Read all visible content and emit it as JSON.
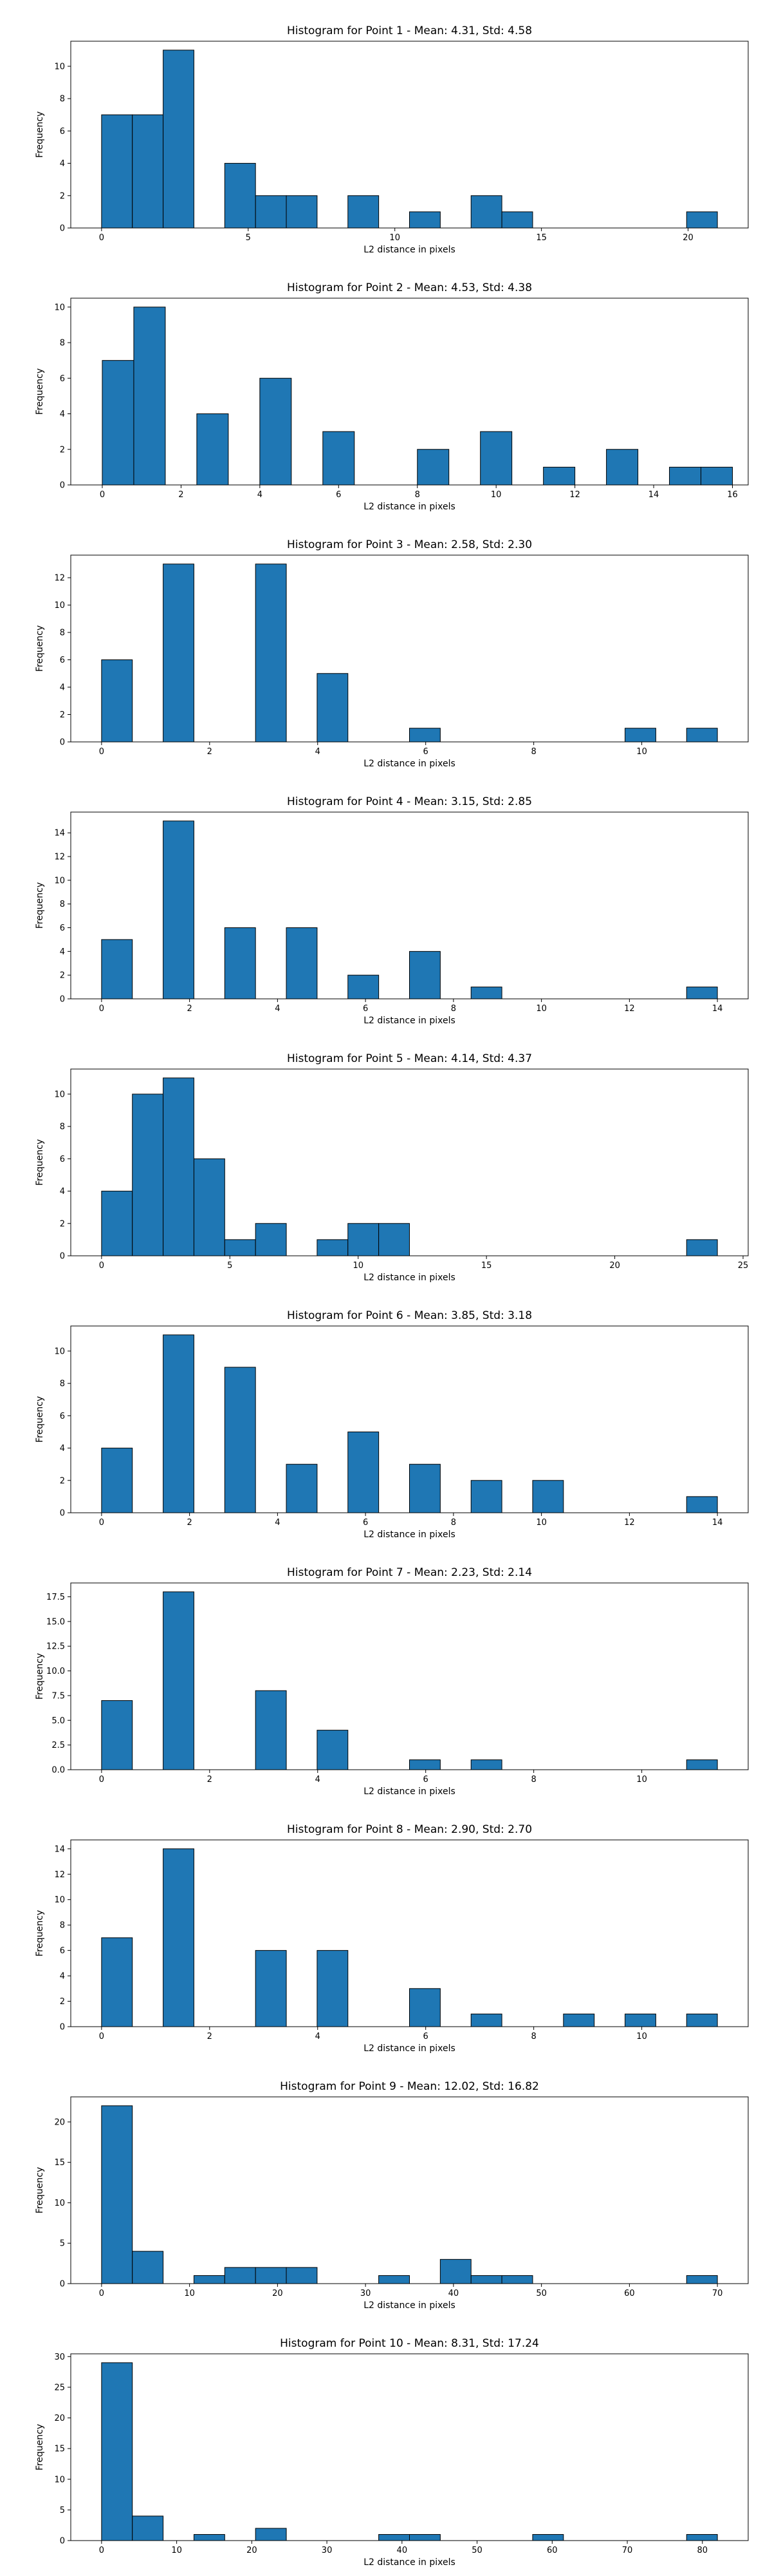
{
  "chart_data": [
    {
      "type": "bar",
      "title": "Histogram for Point 1 - Mean: 4.31, Std: 4.58",
      "xlabel": "L2 distance in pixels",
      "ylabel": "Frequency",
      "bin_width": 1.05,
      "xlim": [
        -1.05,
        22.05
      ],
      "ylim": [
        0,
        11.55
      ],
      "xticks": [
        0,
        5,
        10,
        15,
        20
      ],
      "yticks": [
        0,
        2,
        4,
        6,
        8,
        10
      ],
      "ytick_labels": [
        "0",
        "2",
        "4",
        "6",
        "8",
        "10"
      ],
      "bins": [
        [
          0,
          7
        ],
        [
          1.05,
          7
        ],
        [
          2.1,
          11
        ],
        [
          4.2,
          4
        ],
        [
          5.25,
          2
        ],
        [
          6.3,
          2
        ],
        [
          8.4,
          2
        ],
        [
          10.5,
          1
        ],
        [
          12.6,
          2
        ],
        [
          13.65,
          1
        ],
        [
          19.95,
          1
        ]
      ]
    },
    {
      "type": "bar",
      "title": "Histogram for Point 2 - Mean: 4.53, Std: 4.38",
      "xlabel": "L2 distance in pixels",
      "ylabel": "Frequency",
      "bin_width": 0.8,
      "xlim": [
        -0.8,
        16.4
      ],
      "ylim": [
        0,
        10.5
      ],
      "xticks": [
        0,
        2,
        4,
        6,
        8,
        10,
        12,
        14,
        16
      ],
      "yticks": [
        0,
        2,
        4,
        6,
        8,
        10
      ],
      "ytick_labels": [
        "0",
        "2",
        "4",
        "6",
        "8",
        "10"
      ],
      "bins": [
        [
          0,
          7
        ],
        [
          0.8,
          10
        ],
        [
          2.4,
          4
        ],
        [
          4,
          6
        ],
        [
          5.6,
          3
        ],
        [
          8,
          2
        ],
        [
          9.6,
          3
        ],
        [
          11.2,
          1
        ],
        [
          12.8,
          2
        ],
        [
          14.4,
          1
        ],
        [
          15.2,
          1
        ]
      ]
    },
    {
      "type": "bar",
      "title": "Histogram for Point 3 - Mean: 2.58, Std: 2.30",
      "xlabel": "L2 distance in pixels",
      "ylabel": "Frequency",
      "bin_width": 0.57,
      "xlim": [
        -0.57,
        11.97
      ],
      "ylim": [
        0,
        13.65
      ],
      "xticks": [
        0,
        2,
        4,
        6,
        8,
        10
      ],
      "yticks": [
        0,
        2,
        4,
        6,
        8,
        10,
        12
      ],
      "ytick_labels": [
        "0",
        "2",
        "4",
        "6",
        "8",
        "10",
        "12"
      ],
      "bins": [
        [
          0,
          6
        ],
        [
          1.14,
          13
        ],
        [
          2.85,
          13
        ],
        [
          3.99,
          5
        ],
        [
          5.7,
          1
        ],
        [
          9.69,
          1
        ],
        [
          10.83,
          1
        ]
      ]
    },
    {
      "type": "bar",
      "title": "Histogram for Point 4 - Mean: 3.15, Std: 2.85",
      "xlabel": "L2 distance in pixels",
      "ylabel": "Frequency",
      "bin_width": 0.7,
      "xlim": [
        -0.7,
        14.7
      ],
      "ylim": [
        0,
        15.75
      ],
      "xticks": [
        0,
        2,
        4,
        6,
        8,
        10,
        12,
        14
      ],
      "yticks": [
        0,
        2,
        4,
        6,
        8,
        10,
        12,
        14
      ],
      "ytick_labels": [
        "0",
        "2",
        "4",
        "6",
        "8",
        "10",
        "12",
        "14"
      ],
      "bins": [
        [
          0,
          5
        ],
        [
          1.4,
          15
        ],
        [
          2.8,
          6
        ],
        [
          4.2,
          6
        ],
        [
          5.6,
          2
        ],
        [
          7,
          4
        ],
        [
          8.4,
          1
        ],
        [
          13.3,
          1
        ]
      ]
    },
    {
      "type": "bar",
      "title": "Histogram for Point 5 - Mean: 4.14, Std: 4.37",
      "xlabel": "L2 distance in pixels",
      "ylabel": "Frequency",
      "bin_width": 1.2,
      "xlim": [
        -1.2,
        25.2
      ],
      "ylim": [
        0,
        11.55
      ],
      "xticks": [
        0,
        5,
        10,
        15,
        20,
        25
      ],
      "yticks": [
        0,
        2,
        4,
        6,
        8,
        10
      ],
      "ytick_labels": [
        "0",
        "2",
        "4",
        "6",
        "8",
        "10"
      ],
      "bins": [
        [
          0,
          4
        ],
        [
          1.2,
          10
        ],
        [
          2.4,
          11
        ],
        [
          3.6,
          6
        ],
        [
          4.8,
          1
        ],
        [
          6,
          2
        ],
        [
          8.4,
          1
        ],
        [
          9.6,
          2
        ],
        [
          10.8,
          2
        ],
        [
          22.8,
          1
        ]
      ]
    },
    {
      "type": "bar",
      "title": "Histogram for Point 6 - Mean: 3.85, Std: 3.18",
      "xlabel": "L2 distance in pixels",
      "ylabel": "Frequency",
      "bin_width": 0.7,
      "xlim": [
        -0.7,
        14.7
      ],
      "ylim": [
        0,
        11.55
      ],
      "xticks": [
        0,
        2,
        4,
        6,
        8,
        10,
        12,
        14
      ],
      "yticks": [
        0,
        2,
        4,
        6,
        8,
        10
      ],
      "ytick_labels": [
        "0",
        "2",
        "4",
        "6",
        "8",
        "10"
      ],
      "bins": [
        [
          0,
          4
        ],
        [
          1.4,
          11
        ],
        [
          2.8,
          9
        ],
        [
          4.2,
          3
        ],
        [
          5.6,
          5
        ],
        [
          7,
          3
        ],
        [
          8.4,
          2
        ],
        [
          9.8,
          2
        ],
        [
          13.3,
          1
        ]
      ]
    },
    {
      "type": "bar",
      "title": "Histogram for Point 7 - Mean: 2.23, Std: 2.14",
      "xlabel": "L2 distance in pixels",
      "ylabel": "Frequency",
      "bin_width": 0.57,
      "xlim": [
        -0.57,
        11.97
      ],
      "ylim": [
        0,
        18.9
      ],
      "xticks": [
        0,
        2,
        4,
        6,
        8,
        10
      ],
      "yticks": [
        0,
        2.5,
        5,
        7.5,
        10,
        12.5,
        15,
        17.5
      ],
      "ytick_labels": [
        "0.0",
        "2.5",
        "5.0",
        "7.5",
        "10.0",
        "12.5",
        "15.0",
        "17.5"
      ],
      "bins": [
        [
          0,
          7
        ],
        [
          1.14,
          18
        ],
        [
          2.85,
          8
        ],
        [
          3.99,
          4
        ],
        [
          5.7,
          1
        ],
        [
          6.84,
          1
        ],
        [
          10.83,
          1
        ]
      ]
    },
    {
      "type": "bar",
      "title": "Histogram for Point 8 - Mean: 2.90, Std: 2.70",
      "xlabel": "L2 distance in pixels",
      "ylabel": "Frequency",
      "bin_width": 0.57,
      "xlim": [
        -0.57,
        11.97
      ],
      "ylim": [
        0,
        14.7
      ],
      "xticks": [
        0,
        2,
        4,
        6,
        8,
        10
      ],
      "yticks": [
        0,
        2,
        4,
        6,
        8,
        10,
        12,
        14
      ],
      "ytick_labels": [
        "0",
        "2",
        "4",
        "6",
        "8",
        "10",
        "12",
        "14"
      ],
      "bins": [
        [
          0,
          7
        ],
        [
          1.14,
          14
        ],
        [
          2.85,
          6
        ],
        [
          3.99,
          6
        ],
        [
          5.7,
          3
        ],
        [
          6.84,
          1
        ],
        [
          8.55,
          1
        ],
        [
          9.69,
          1
        ],
        [
          10.83,
          1
        ]
      ]
    },
    {
      "type": "bar",
      "title": "Histogram for Point 9 - Mean: 12.02, Std: 16.82",
      "xlabel": "L2 distance in pixels",
      "ylabel": "Frequency",
      "bin_width": 3.5,
      "xlim": [
        -3.5,
        73.5
      ],
      "ylim": [
        0,
        23.1
      ],
      "xticks": [
        0,
        10,
        20,
        30,
        40,
        50,
        60,
        70
      ],
      "yticks": [
        0,
        5,
        10,
        15,
        20
      ],
      "ytick_labels": [
        "0",
        "5",
        "10",
        "15",
        "20"
      ],
      "bins": [
        [
          0,
          22
        ],
        [
          3.5,
          4
        ],
        [
          10.5,
          1
        ],
        [
          14,
          2
        ],
        [
          17.5,
          2
        ],
        [
          21,
          2
        ],
        [
          31.5,
          1
        ],
        [
          38.5,
          3
        ],
        [
          42,
          1
        ],
        [
          45.5,
          1
        ],
        [
          66.5,
          1
        ]
      ]
    },
    {
      "type": "bar",
      "title": "Histogram for Point 10 - Mean: 8.31, Std: 17.24",
      "xlabel": "L2 distance in pixels",
      "ylabel": "Frequency",
      "bin_width": 4.1,
      "xlim": [
        -4.1,
        86.1
      ],
      "ylim": [
        0,
        30.45
      ],
      "xticks": [
        0,
        10,
        20,
        30,
        40,
        50,
        60,
        70,
        80
      ],
      "yticks": [
        0,
        5,
        10,
        15,
        20,
        25,
        30
      ],
      "ytick_labels": [
        "0",
        "5",
        "10",
        "15",
        "20",
        "25",
        "30"
      ],
      "bins": [
        [
          0,
          29
        ],
        [
          4.1,
          4
        ],
        [
          12.3,
          1
        ],
        [
          20.5,
          2
        ],
        [
          36.9,
          1
        ],
        [
          41,
          1
        ],
        [
          57.4,
          1
        ],
        [
          77.9,
          1
        ]
      ]
    }
  ],
  "colors": {
    "bar_fill": "#1f77b4",
    "bar_edge": "#000000",
    "axes": "#000000"
  }
}
